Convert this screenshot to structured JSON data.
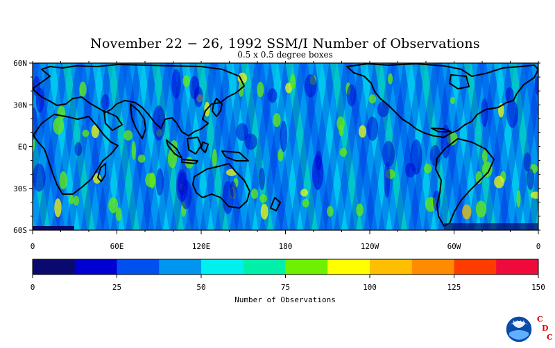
{
  "title": "November 22 − 26, 1992 SSM/I Number of Observations",
  "subtitle": "0.5 x 0.5 degree boxes",
  "map": {
    "lat_labels": [
      "60N",
      "30N",
      "EQ",
      "30S",
      "60S"
    ],
    "lon_labels": [
      "0",
      "60E",
      "120E",
      "180",
      "120W",
      "60W",
      "0"
    ],
    "lat_range": [
      -60,
      60
    ],
    "lon_range": [
      0,
      360
    ],
    "land_color": "#00c8ff",
    "coastline_color": "#000000"
  },
  "colorbar": {
    "colors": [
      "#0a0a6e",
      "#0000d2",
      "#0050f0",
      "#0096f0",
      "#00f0f0",
      "#00f0aa",
      "#6ef000",
      "#ffff00",
      "#ffbe00",
      "#ff8c00",
      "#ff3c00",
      "#f00a3c"
    ],
    "tick_labels": [
      "0",
      "25",
      "50",
      "75",
      "100",
      "125",
      "150"
    ],
    "range": [
      0,
      150
    ],
    "label": "Number of Observations"
  },
  "logo": {
    "text": "NOAA",
    "letters": [
      "C",
      "D",
      "C"
    ],
    "letter_color": "#dd0000"
  }
}
